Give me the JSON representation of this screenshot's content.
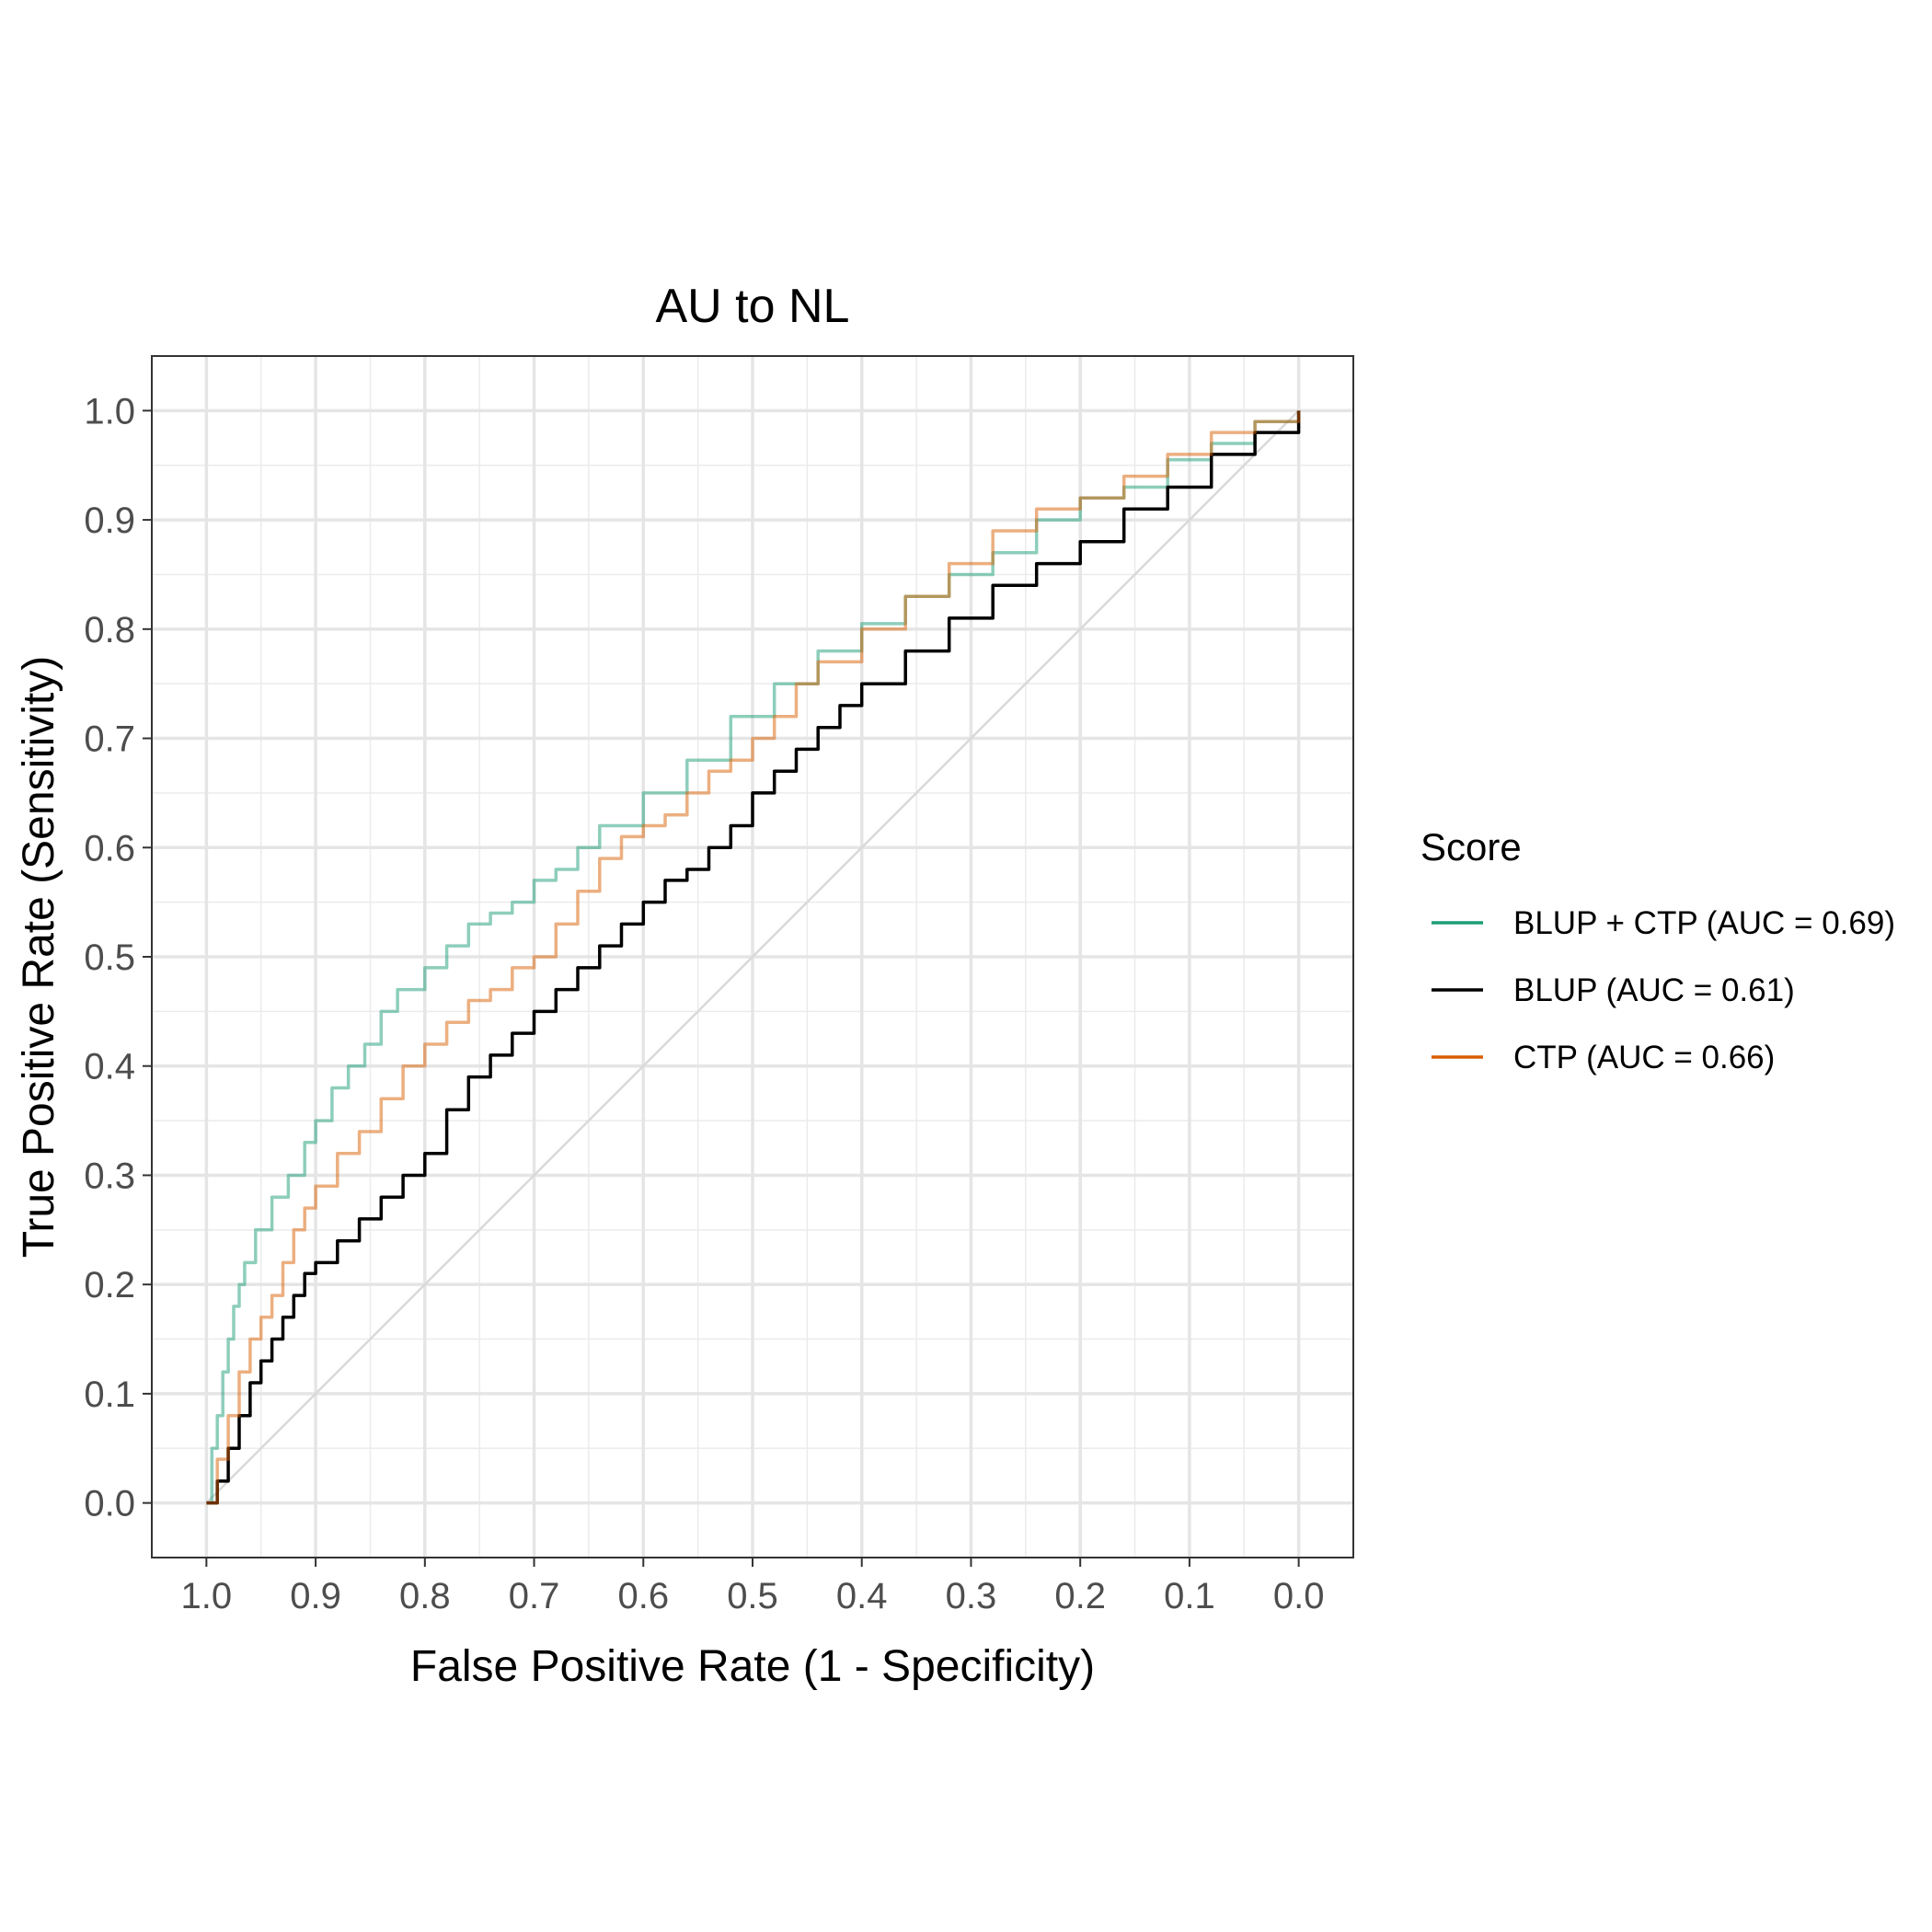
{
  "chart_data": {
    "type": "line",
    "title": "AU to NL",
    "xlabel": "False Positive Rate (1 - Specificity)",
    "ylabel": "True Positive Rate (Sensitivity)",
    "x_reversed": true,
    "xlim": [
      1.05,
      -0.05
    ],
    "ylim": [
      -0.05,
      1.05
    ],
    "x_ticks": [
      "1.0",
      "0.9",
      "0.8",
      "0.7",
      "0.6",
      "0.5",
      "0.4",
      "0.3",
      "0.2",
      "0.1",
      "0.0"
    ],
    "y_ticks": [
      "0.0",
      "0.1",
      "0.2",
      "0.3",
      "0.4",
      "0.5",
      "0.6",
      "0.7",
      "0.8",
      "0.9",
      "1.0"
    ],
    "grid": true,
    "legend": {
      "title": "Score",
      "placement": "right"
    },
    "diagonal_reference": {
      "color": "#d9d9d9"
    },
    "series": [
      {
        "name": "BLUP + CTP (AUC = 0.69)",
        "color": "#1b9e77",
        "opacity": 0.5,
        "x": [
          1.0,
          0.995,
          0.99,
          0.985,
          0.98,
          0.975,
          0.97,
          0.965,
          0.955,
          0.94,
          0.925,
          0.91,
          0.9,
          0.885,
          0.87,
          0.855,
          0.84,
          0.825,
          0.8,
          0.78,
          0.76,
          0.74,
          0.72,
          0.7,
          0.68,
          0.66,
          0.64,
          0.6,
          0.56,
          0.52,
          0.48,
          0.44,
          0.4,
          0.36,
          0.32,
          0.28,
          0.24,
          0.2,
          0.16,
          0.12,
          0.08,
          0.04,
          0.0
        ],
        "y": [
          0.0,
          0.05,
          0.08,
          0.12,
          0.15,
          0.18,
          0.2,
          0.22,
          0.25,
          0.28,
          0.3,
          0.33,
          0.35,
          0.38,
          0.4,
          0.42,
          0.45,
          0.47,
          0.49,
          0.51,
          0.53,
          0.54,
          0.55,
          0.57,
          0.58,
          0.6,
          0.62,
          0.65,
          0.68,
          0.72,
          0.75,
          0.78,
          0.805,
          0.83,
          0.85,
          0.87,
          0.9,
          0.92,
          0.93,
          0.955,
          0.97,
          0.99,
          1.0
        ]
      },
      {
        "name": "BLUP (AUC = 0.61)",
        "color": "#000000",
        "opacity": 1,
        "x": [
          1.0,
          0.99,
          0.98,
          0.97,
          0.96,
          0.95,
          0.94,
          0.93,
          0.92,
          0.91,
          0.9,
          0.88,
          0.86,
          0.84,
          0.82,
          0.8,
          0.78,
          0.76,
          0.74,
          0.72,
          0.7,
          0.68,
          0.66,
          0.64,
          0.62,
          0.6,
          0.58,
          0.56,
          0.54,
          0.52,
          0.5,
          0.48,
          0.46,
          0.44,
          0.42,
          0.4,
          0.36,
          0.32,
          0.28,
          0.24,
          0.2,
          0.16,
          0.12,
          0.08,
          0.04,
          0.0
        ],
        "y": [
          0.0,
          0.02,
          0.05,
          0.08,
          0.11,
          0.13,
          0.15,
          0.17,
          0.19,
          0.21,
          0.22,
          0.24,
          0.26,
          0.28,
          0.3,
          0.32,
          0.36,
          0.39,
          0.41,
          0.43,
          0.45,
          0.47,
          0.49,
          0.51,
          0.53,
          0.55,
          0.57,
          0.58,
          0.6,
          0.62,
          0.65,
          0.67,
          0.69,
          0.71,
          0.73,
          0.75,
          0.78,
          0.81,
          0.84,
          0.86,
          0.88,
          0.91,
          0.93,
          0.96,
          0.98,
          1.0
        ]
      },
      {
        "name": "CTP (AUC = 0.66)",
        "color": "#d95f02",
        "opacity": 0.5,
        "x": [
          1.0,
          0.99,
          0.98,
          0.97,
          0.96,
          0.95,
          0.94,
          0.93,
          0.92,
          0.91,
          0.9,
          0.88,
          0.86,
          0.84,
          0.82,
          0.8,
          0.78,
          0.76,
          0.74,
          0.72,
          0.7,
          0.68,
          0.66,
          0.64,
          0.62,
          0.6,
          0.58,
          0.56,
          0.54,
          0.52,
          0.5,
          0.48,
          0.46,
          0.44,
          0.4,
          0.36,
          0.32,
          0.28,
          0.24,
          0.2,
          0.16,
          0.12,
          0.08,
          0.04,
          0.0
        ],
        "y": [
          0.0,
          0.04,
          0.08,
          0.12,
          0.15,
          0.17,
          0.19,
          0.22,
          0.25,
          0.27,
          0.29,
          0.32,
          0.34,
          0.37,
          0.4,
          0.42,
          0.44,
          0.46,
          0.47,
          0.49,
          0.5,
          0.53,
          0.56,
          0.59,
          0.61,
          0.62,
          0.63,
          0.65,
          0.67,
          0.68,
          0.7,
          0.72,
          0.75,
          0.77,
          0.8,
          0.83,
          0.86,
          0.89,
          0.91,
          0.92,
          0.94,
          0.96,
          0.98,
          0.99,
          1.0
        ]
      }
    ]
  }
}
